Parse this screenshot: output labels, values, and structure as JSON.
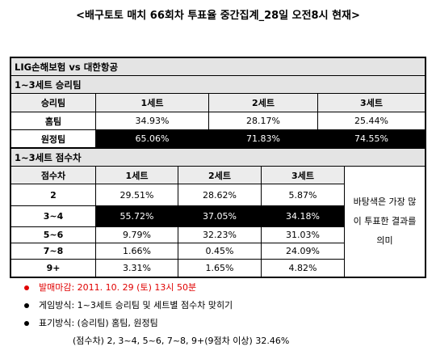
{
  "title": "<배구토토 매치 66회차 투표율 중간집계_28일 오전8시 현재>",
  "table": {
    "match": "LIG손해보험 vs 대한항공",
    "win_section": "1~3세트 승리팀",
    "win_header": [
      "승리팀",
      "1세트",
      "2세트",
      "3세트"
    ],
    "win_rows": [
      [
        "홈팀",
        "34.93%",
        "28.17%",
        "25.44%"
      ],
      [
        "원정팀",
        "65.06%",
        "71.83%",
        "74.55%"
      ]
    ],
    "diff_section": "1~3세트 점수차",
    "diff_header": [
      "점수차",
      "1세트",
      "2세트",
      "3세트"
    ],
    "diff_rows": [
      [
        "2",
        "29.51%",
        "28.62%",
        "5.87%"
      ],
      [
        "3~4",
        "55.72%",
        "37.05%",
        "34.18%"
      ],
      [
        "5~6",
        "9.79%",
        "32.23%",
        "31.03%"
      ],
      [
        "7~8",
        "1.66%",
        "0.45%",
        "24.09%"
      ],
      [
        "9+",
        "3.31%",
        "1.65%",
        "4.82%"
      ]
    ],
    "note": "바탕색은 가장 많이 투표한 결과를 의미"
  },
  "notes": [
    "발매마감: 2011. 10. 29 (토) 13시 50분",
    "게임방식: 1~3세트 승리팀 및 세트별 점수차 맞히기",
    "표기방식: (승리팀) 홈팀, 원정팀",
    "(점수차) 2, 3~4, 5~6, 7~8, 9+(9점차 이상) 32.46%"
  ]
}
